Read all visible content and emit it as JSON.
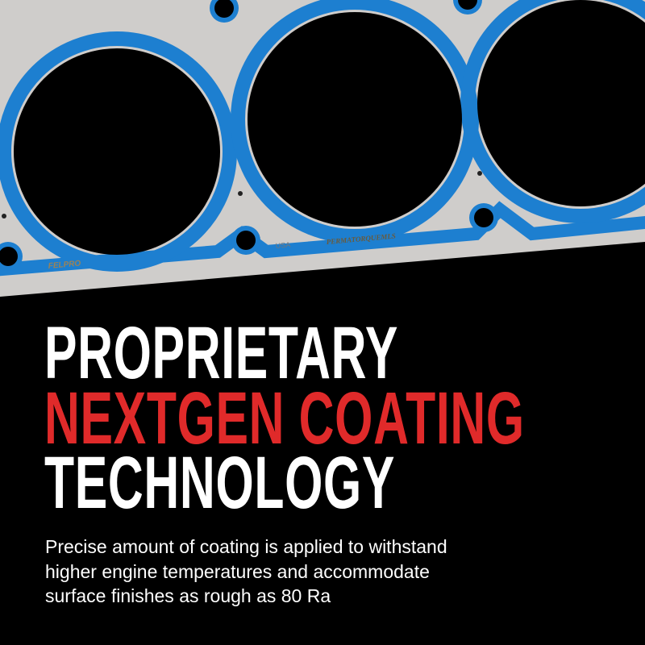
{
  "image": {
    "gasket_markings": [
      "FELPRO",
      "USA",
      "PERMATORQUEMLS"
    ],
    "colors": {
      "background": "#000000",
      "coating_blue": "#1d7fd0",
      "metal": "#cfcdcb",
      "accent_red": "#e02a2a",
      "text": "#ffffff"
    }
  },
  "headline": {
    "line1": "PROPRIETARY",
    "line2": "NEXTGEN COATING",
    "line3": "TECHNOLOGY"
  },
  "body": {
    "lines": [
      "Precise amount of coating is applied to withstand",
      "higher engine temperatures and accommodate",
      "surface finishes as rough as 80 Ra"
    ]
  }
}
